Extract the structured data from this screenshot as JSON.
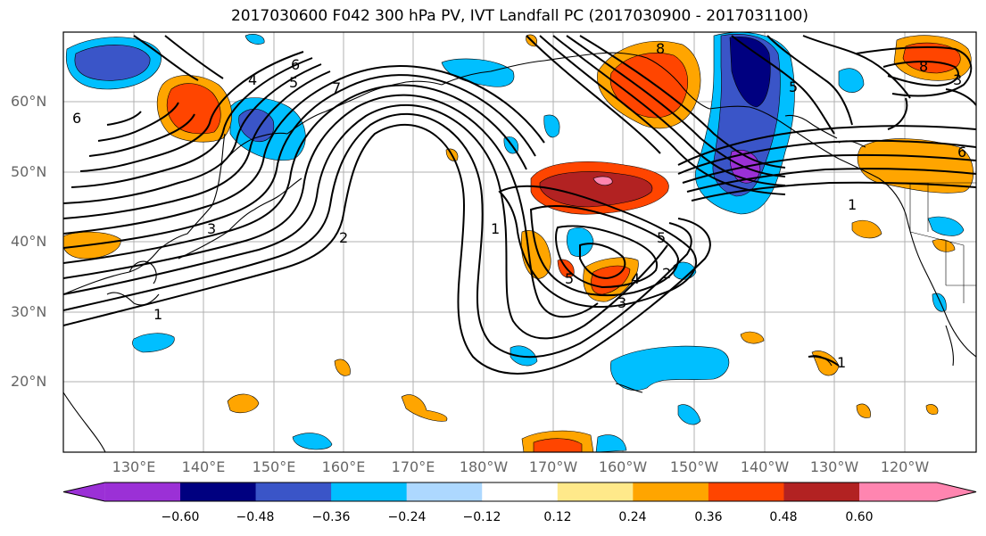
{
  "title": "2017030600 F042 300 hPa PV, IVT Landfall PC (2017030900 - 2017031100)",
  "lat_labels": [
    "60°N",
    "50°N",
    "40°N",
    "30°N",
    "20°N"
  ],
  "lon_labels": [
    "130°E",
    "140°E",
    "150°E",
    "160°E",
    "170°E",
    "180°W",
    "170°W",
    "160°W",
    "150°W",
    "140°W",
    "130°W",
    "120°W"
  ],
  "colorbar": {
    "colors": [
      "#9b30d6",
      "#000080",
      "#3a55c8",
      "#00bfff",
      "#add8ff",
      "#ffffff",
      "#ffe98a",
      "#ffa500",
      "#ff4500",
      "#b22222",
      "#ff85b0"
    ],
    "tick_labels": [
      "−0.60",
      "−0.48",
      "−0.36",
      "−0.24",
      "−0.12",
      "0.12",
      "0.24",
      "0.36",
      "0.48",
      "0.60"
    ]
  },
  "contour_labels": [
    "1",
    "2",
    "3",
    "4",
    "5",
    "6",
    "7",
    "8",
    "6",
    "5",
    "3",
    "1",
    "4",
    "5",
    "2",
    "1",
    "3",
    "5",
    "8",
    "6",
    "1"
  ]
}
